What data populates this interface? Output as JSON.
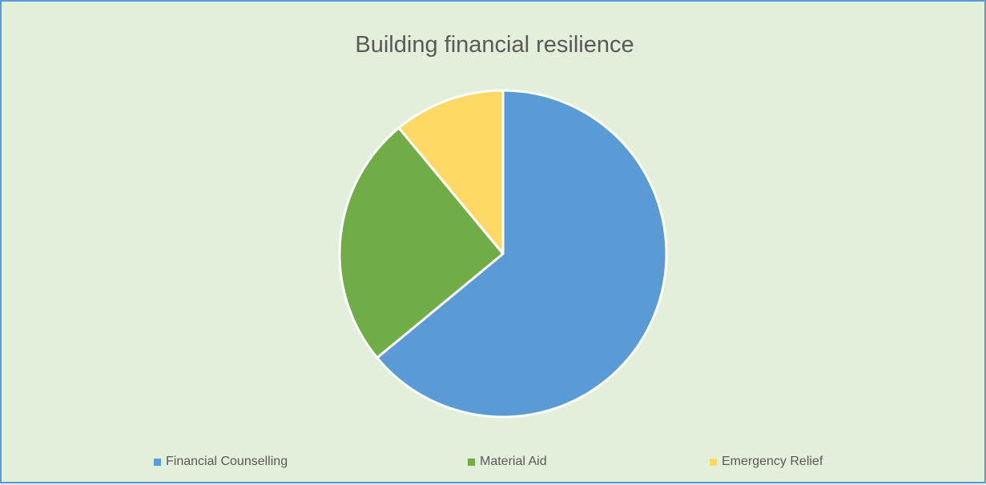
{
  "chart_data": {
    "type": "pie",
    "title": "Building financial resilience",
    "categories": [
      "Financial Counselling",
      "Material Aid",
      "Emergency Relief"
    ],
    "values": [
      64,
      25,
      11
    ],
    "colors": [
      "#5b9bd5",
      "#70ad47",
      "#ffd966"
    ],
    "legend": "bottom"
  }
}
